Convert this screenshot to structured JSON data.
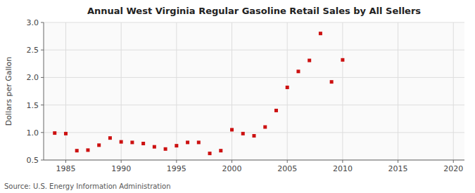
{
  "chart_data": {
    "type": "scatter",
    "title": "Annual West Virginia Regular Gasoline Retail Sales by All Sellers",
    "y_label": "Dollars per Gallon",
    "annotation": "Source: U.S. Energy Information Administration",
    "color": "#cc1111",
    "marker": "square",
    "grid": true,
    "x": [
      1984,
      1985,
      1986,
      1987,
      1988,
      1989,
      1990,
      1991,
      1992,
      1993,
      1994,
      1995,
      1996,
      1997,
      1998,
      1999,
      2000,
      2001,
      2002,
      2003,
      2004,
      2005,
      2006,
      2007,
      2008,
      2009,
      2010
    ],
    "values": [
      0.99,
      0.98,
      0.67,
      0.68,
      0.77,
      0.9,
      0.83,
      0.82,
      0.8,
      0.74,
      0.7,
      0.76,
      0.82,
      0.82,
      0.62,
      0.67,
      1.05,
      0.98,
      0.94,
      1.1,
      1.4,
      1.82,
      2.11,
      2.31,
      2.8,
      1.92,
      2.32
    ],
    "xlim": [
      1983,
      2021
    ],
    "xticks": [
      1985,
      1990,
      1995,
      2000,
      2005,
      2010,
      2015,
      2020
    ],
    "ylim": [
      0.5,
      3.0
    ],
    "yticks": [
      0.5,
      {
        "value": 1.0,
        "label": "1.0"
      },
      1.5,
      {
        "value": 2.0,
        "label": "2.0"
      },
      2.5,
      {
        "value": 3.0,
        "label": "3.0"
      }
    ]
  }
}
